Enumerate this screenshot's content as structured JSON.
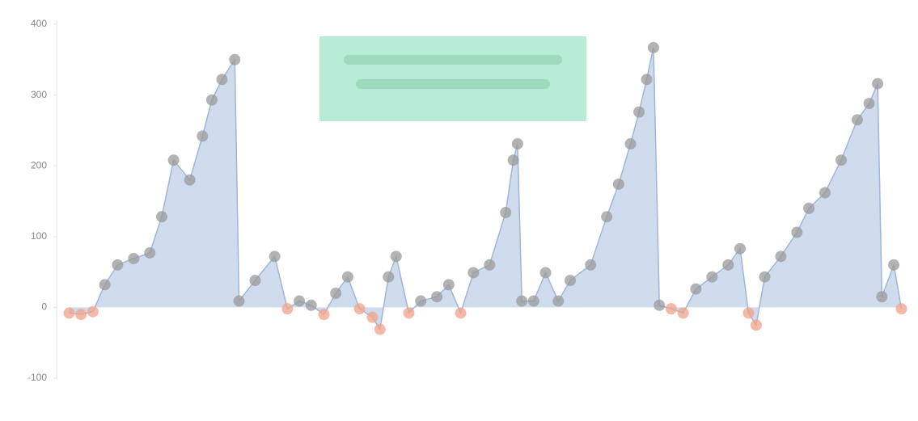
{
  "chart_data": {
    "type": "area",
    "x": [
      1,
      2.4,
      3.8,
      5.2,
      6.7,
      8.6,
      10.5,
      11.9,
      13.3,
      15.2,
      16.7,
      17.8,
      19,
      20.5,
      21,
      22.9,
      25.2,
      26.7,
      28.1,
      29.5,
      31,
      32.4,
      33.8,
      35.2,
      36.7,
      37.6,
      38.6,
      39.5,
      41,
      42.4,
      44.3,
      45.7,
      47.1,
      48.6,
      50.5,
      52.4,
      53.3,
      53.8,
      54.3,
      55.7,
      57.1,
      58.6,
      60,
      62.4,
      64.3,
      65.7,
      67.1,
      68.1,
      69,
      69.8,
      70.5,
      71.9,
      73.3,
      74.8,
      76.7,
      78.6,
      80,
      81,
      81.9,
      82.9,
      84.8,
      86.7,
      88.1,
      90,
      91.9,
      93.8,
      95.2,
      96.2,
      96.7,
      98.1,
      99
    ],
    "series": [
      {
        "color": "#c3d3ea",
        "line_color": "#9fb6d8",
        "marker_color": "#9a9a9a",
        "negative_color": "#f2a38a",
        "values": [
          -8,
          -10,
          -6,
          32,
          60,
          69,
          77,
          128,
          208,
          180,
          242,
          293,
          322,
          350,
          9,
          38,
          72,
          -2,
          9,
          3,
          -10,
          20,
          43,
          -2,
          -14,
          -31,
          43,
          72,
          -8,
          9,
          15,
          32,
          -8,
          49,
          60,
          134,
          208,
          231,
          9,
          9,
          49,
          9,
          38,
          60,
          128,
          174,
          231,
          276,
          322,
          367,
          3,
          -2,
          -8,
          26,
          43,
          60,
          83,
          -8,
          -25,
          43,
          72,
          106,
          140,
          162,
          208,
          265,
          288,
          316,
          15,
          60,
          -2
        ]
      }
    ],
    "xlim": [
      0,
      100
    ],
    "ylim": [
      -100,
      400
    ],
    "yticks": [
      -100,
      0,
      100,
      200,
      300,
      400
    ]
  }
}
